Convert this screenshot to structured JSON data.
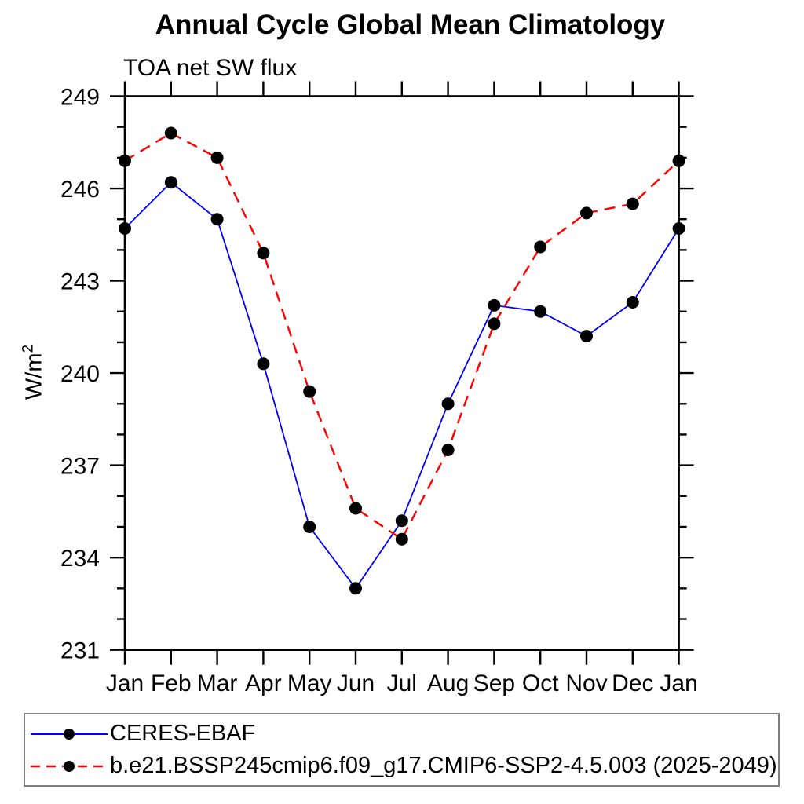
{
  "window": {
    "background": "#ffffff"
  },
  "chart_data": {
    "type": "line",
    "title": "Annual Cycle Global Mean Climatology",
    "subtitle": "TOA net SW flux",
    "xlabel": "",
    "ylabel": "W/m2",
    "ylabel_base": "W/m",
    "ylabel_sup": "2",
    "x_categories": [
      "Jan",
      "Feb",
      "Mar",
      "Apr",
      "May",
      "Jun",
      "Jul",
      "Aug",
      "Sep",
      "Oct",
      "Nov",
      "Dec",
      "Jan"
    ],
    "ylim": [
      231,
      249
    ],
    "ytick_major": [
      231,
      234,
      237,
      240,
      243,
      246,
      249
    ],
    "ytick_minor_step": 1,
    "grid": false,
    "axis_color": "#000000",
    "marker_color": "#000000",
    "legend_position": "bottom-left-box",
    "series": [
      {
        "name": "CERES-EBAF",
        "color": "#0000ff",
        "line_style": "solid",
        "marker": "filled-circle",
        "values": [
          244.7,
          246.2,
          245.0,
          240.3,
          235.0,
          233.0,
          235.2,
          239.0,
          242.2,
          242.0,
          241.2,
          242.3,
          244.7
        ]
      },
      {
        "name": "b.e21.BSSP245cmip6.f09_g17.CMIP6-SSP2-4.5.003 (2025-2049)",
        "color": "#ff0000",
        "line_style": "dashed",
        "marker": "filled-circle",
        "values": [
          246.9,
          247.8,
          247.0,
          243.9,
          239.4,
          235.6,
          234.6,
          237.5,
          241.6,
          244.1,
          245.2,
          245.5,
          246.9
        ]
      }
    ]
  }
}
